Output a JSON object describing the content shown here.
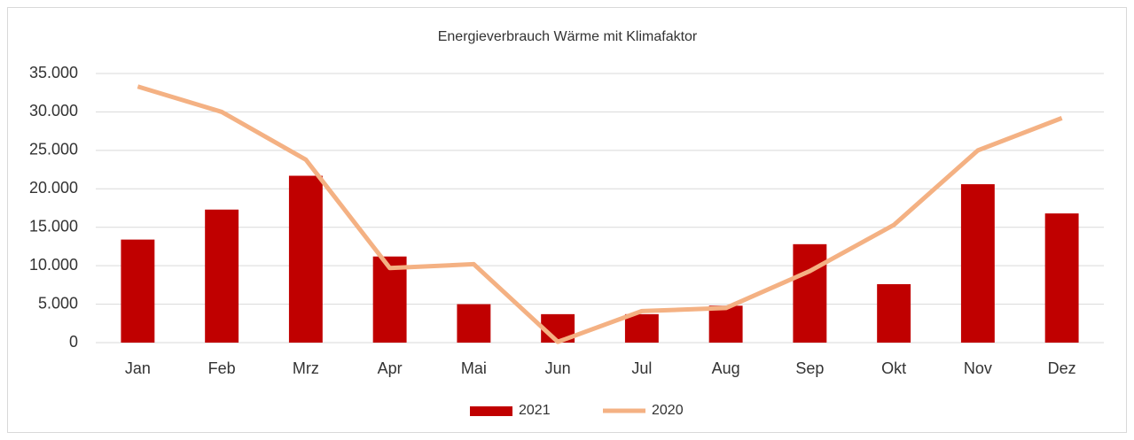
{
  "chart_data": {
    "type": "bar",
    "title": "Energieverbrauch Wärme mit Klimafaktor",
    "categories": [
      "Jan",
      "Feb",
      "Mrz",
      "Apr",
      "Mai",
      "Jun",
      "Jul",
      "Aug",
      "Sep",
      "Okt",
      "Nov",
      "Dez"
    ],
    "series": [
      {
        "name": "2021",
        "type": "bar",
        "color": "#c00000",
        "values": [
          13400,
          17300,
          21700,
          11200,
          5000,
          3700,
          3700,
          4800,
          12800,
          7600,
          20600,
          16800
        ]
      },
      {
        "name": "2020",
        "type": "line",
        "color": "#f4b183",
        "values": [
          33300,
          30000,
          23800,
          9700,
          10200,
          100,
          4100,
          4500,
          9300,
          15300,
          25000,
          29200
        ]
      }
    ],
    "ylim": [
      0,
      35000
    ],
    "yticks": [
      0,
      {
        "value": 5000,
        "label": "5.000"
      },
      {
        "value": 10000,
        "label": "10.000"
      },
      {
        "value": 15000,
        "label": "15.000"
      },
      {
        "value": 20000,
        "label": "20.000"
      },
      {
        "value": 25000,
        "label": "25.000"
      },
      {
        "value": 30000,
        "label": "30.000"
      },
      {
        "value": 35000,
        "label": "35.000"
      }
    ],
    "grid": true,
    "legend": "bottom"
  }
}
